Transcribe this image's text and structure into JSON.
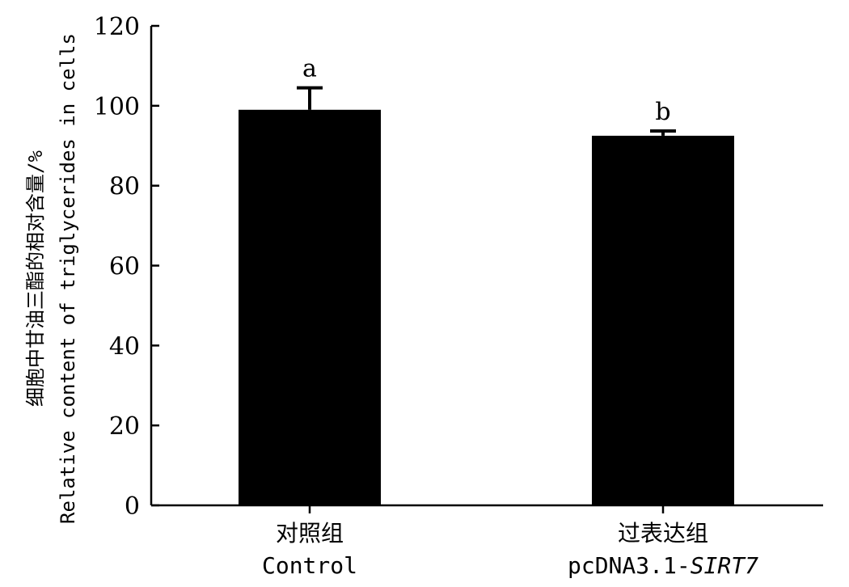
{
  "chart_data": {
    "type": "bar",
    "categories": [
      {
        "label_cn": "对照组",
        "label_en": "Control",
        "label_en_italic": ""
      },
      {
        "label_cn": "过表达组",
        "label_en": "pcDNA3.1-",
        "label_en_italic": "SIRT7"
      }
    ],
    "values": [
      99,
      92.5
    ],
    "errors": [
      5.5,
      1.2
    ],
    "significance": [
      "a",
      "b"
    ],
    "ylabel_cn": "细胞中甘油三酯的相对含量/%",
    "ylabel_en": "Relative content of triglycerides in cells",
    "ylim": [
      0,
      120
    ],
    "yticks": [
      0,
      20,
      40,
      60,
      80,
      100,
      120
    ],
    "bar_color": "#000000",
    "grid": false,
    "legend": "none"
  }
}
